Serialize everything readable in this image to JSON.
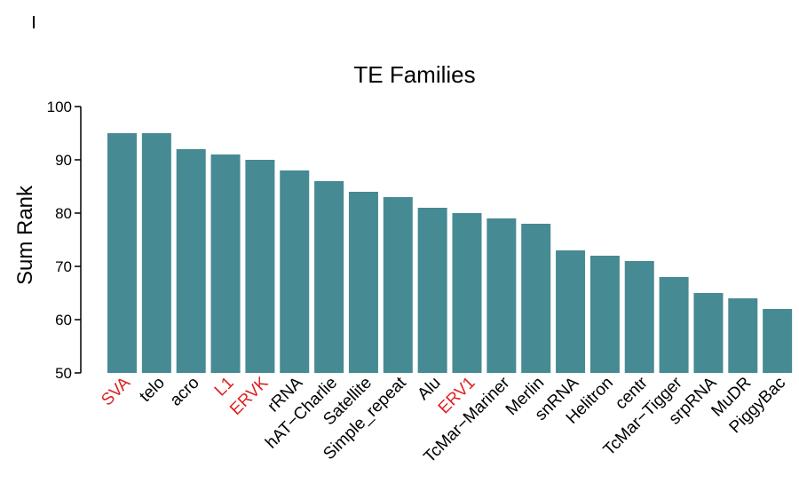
{
  "chart_data": {
    "type": "bar",
    "title": "TE Families",
    "xlabel": "",
    "ylabel": "Sum Rank",
    "ylim": [
      50,
      100
    ],
    "yticks": [
      50,
      60,
      70,
      80,
      90,
      100
    ],
    "bar_color": "#468a93",
    "highlight_color": "#e02020",
    "label_color": "#000000",
    "categories": [
      "SVA",
      "telo",
      "acro",
      "L1",
      "ERVK",
      "rRNA",
      "hAT−Charlie",
      "Satellite",
      "Simple_repeat",
      "Alu",
      "ERV1",
      "TcMar−Mariner",
      "Merlin",
      "snRNA",
      "Helitron",
      "centr",
      "TcMar−Tigger",
      "srpRNA",
      "MuDR",
      "PiggyBac"
    ],
    "values": [
      95,
      95,
      92,
      91,
      90,
      88,
      86,
      84,
      83,
      81,
      80,
      79,
      78,
      73,
      72,
      71,
      68,
      65,
      64,
      62
    ],
    "highlighted": [
      "SVA",
      "L1",
      "ERVK",
      "ERV1"
    ]
  }
}
